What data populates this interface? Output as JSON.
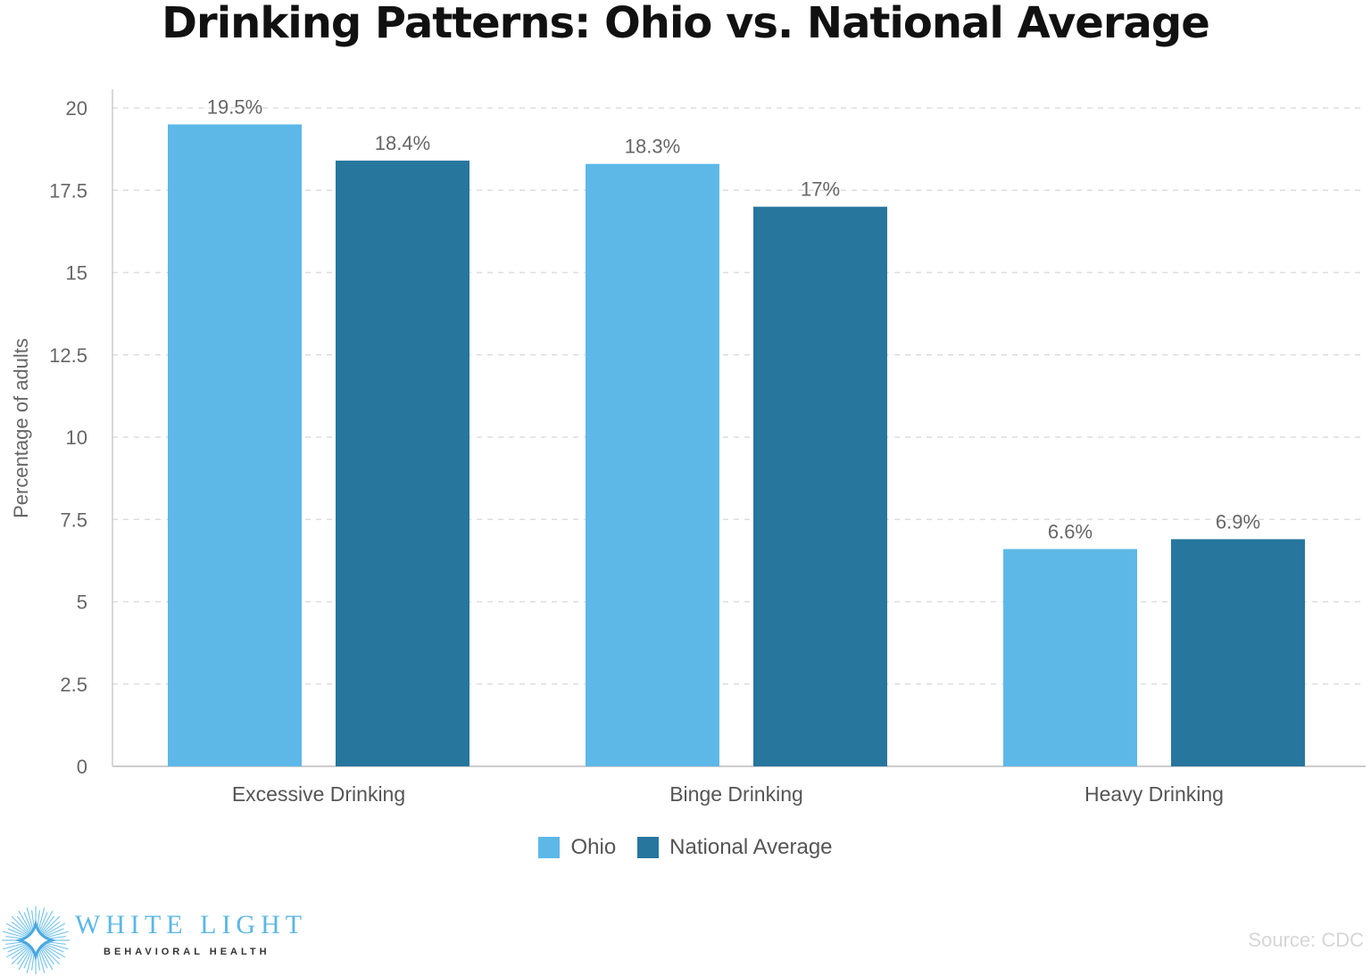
{
  "chart_data": {
    "type": "bar",
    "title": "Drinking Patterns: Ohio vs. National Average",
    "xlabel": "",
    "ylabel": "Percentage of adults",
    "ylim": [
      0,
      20
    ],
    "yticks": [
      "0",
      "2.5",
      "5",
      "7.5",
      "10",
      "12.5",
      "15",
      "17.5",
      "20"
    ],
    "grid": true,
    "legend_position": "bottom",
    "categories": [
      "Excessive Drinking",
      "Binge Drinking",
      "Heavy Drinking"
    ],
    "series": [
      {
        "name": "Ohio",
        "values": [
          19.5,
          18.3,
          6.6
        ],
        "labels": [
          "19.5%",
          "18.3%",
          "6.6%"
        ],
        "color": "#5db8e8"
      },
      {
        "name": "National Average",
        "values": [
          18.4,
          17,
          6.9
        ],
        "labels": [
          "18.4%",
          "17%",
          "6.9%"
        ],
        "color": "#27769e"
      }
    ]
  },
  "source": "Source: CDC",
  "logo": {
    "main": "WHITE LIGHT",
    "sub": "BEHAVIORAL HEALTH"
  }
}
